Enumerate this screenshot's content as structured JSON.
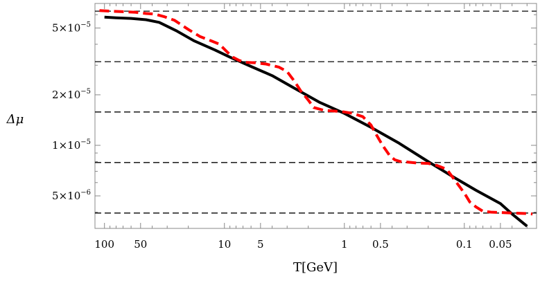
{
  "chart_data": {
    "type": "line",
    "xlabel": "T[GeV]",
    "ylabel": "Δμ",
    "x_scale": "log",
    "x_reversed": true,
    "y_scale": "log",
    "xlim": [
      120,
      0.025
    ],
    "ylim": [
      3.2e-06,
      7e-05
    ],
    "x_ticks": [
      {
        "value": 100,
        "label": "100"
      },
      {
        "value": 50,
        "label": "50"
      },
      {
        "value": 10,
        "label": "10"
      },
      {
        "value": 5,
        "label": "5"
      },
      {
        "value": 1,
        "label": "1"
      },
      {
        "value": 0.5,
        "label": "0.5"
      },
      {
        "value": 0.1,
        "label": "0.1"
      },
      {
        "value": 0.05,
        "label": "0.05"
      }
    ],
    "y_ticks": [
      {
        "value": 5e-05,
        "mantissa": "5×10",
        "exponent": "−5"
      },
      {
        "value": 2e-05,
        "mantissa": "2×10",
        "exponent": "−5"
      },
      {
        "value": 1e-05,
        "mantissa": "1×10",
        "exponent": "−5"
      },
      {
        "value": 5e-06,
        "mantissa": "5×10",
        "exponent": "−6"
      }
    ],
    "reference_lines": [
      6.3e-05,
      3.15e-05,
      1.58e-05,
      7.9e-06,
      3.95e-06
    ],
    "series": [
      {
        "style": "solid",
        "color": "#000000",
        "x": [
          100,
          80,
          60,
          45,
          35,
          25,
          18,
          12,
          9,
          6,
          4,
          2.5,
          1.6,
          1,
          0.6,
          0.35,
          0.2,
          0.12,
          0.08,
          0.05,
          0.04,
          0.03
        ],
        "y": [
          5.8e-05,
          5.75e-05,
          5.7e-05,
          5.6e-05,
          5.4e-05,
          4.8e-05,
          4.2e-05,
          3.7e-05,
          3.35e-05,
          2.95e-05,
          2.6e-05,
          2.15e-05,
          1.8e-05,
          1.55e-05,
          1.28e-05,
          1.03e-05,
          8e-06,
          6.4e-06,
          5.4e-06,
          4.5e-06,
          3.9e-06,
          3.3e-06
        ]
      },
      {
        "style": "dashed",
        "color": "#ff0000",
        "x": [
          110,
          90,
          70,
          55,
          45,
          38,
          32,
          26,
          20,
          16,
          13,
          11,
          9.5,
          8.5,
          7.5,
          6.5,
          5.5,
          4.5,
          3.5,
          3,
          2.6,
          2.3,
          2,
          1.8,
          1.5,
          1.2,
          1,
          0.85,
          0.7,
          0.6,
          0.55,
          0.48,
          0.42,
          0.38,
          0.34,
          0.3,
          0.25,
          0.2,
          0.17,
          0.14,
          0.12,
          0.1,
          0.09,
          0.08,
          0.07,
          0.06,
          0.05,
          0.04,
          0.03,
          0.027
        ],
        "y": [
          6.35e-05,
          6.3e-05,
          6.25e-05,
          6.2e-05,
          6.1e-05,
          6.05e-05,
          5.85e-05,
          5.55e-05,
          4.9e-05,
          4.45e-05,
          4.2e-05,
          4e-05,
          3.6e-05,
          3.35e-05,
          3.2e-05,
          3.12e-05,
          3.1e-05,
          3.05e-05,
          2.92e-05,
          2.75e-05,
          2.4e-05,
          2.1e-05,
          1.86e-05,
          1.68e-05,
          1.62e-05,
          1.6e-05,
          1.58e-05,
          1.55e-05,
          1.48e-05,
          1.32e-05,
          1.18e-05,
          1e-05,
          8.7e-06,
          8.2e-06,
          8e-06,
          7.95e-06,
          7.85e-06,
          7.8e-06,
          7.6e-06,
          7.2e-06,
          6.2e-06,
          5.2e-06,
          4.6e-06,
          4.3e-06,
          4.05e-06,
          4e-06,
          3.98e-06,
          3.95e-06,
          3.92e-06,
          3.9e-06
        ]
      }
    ]
  }
}
